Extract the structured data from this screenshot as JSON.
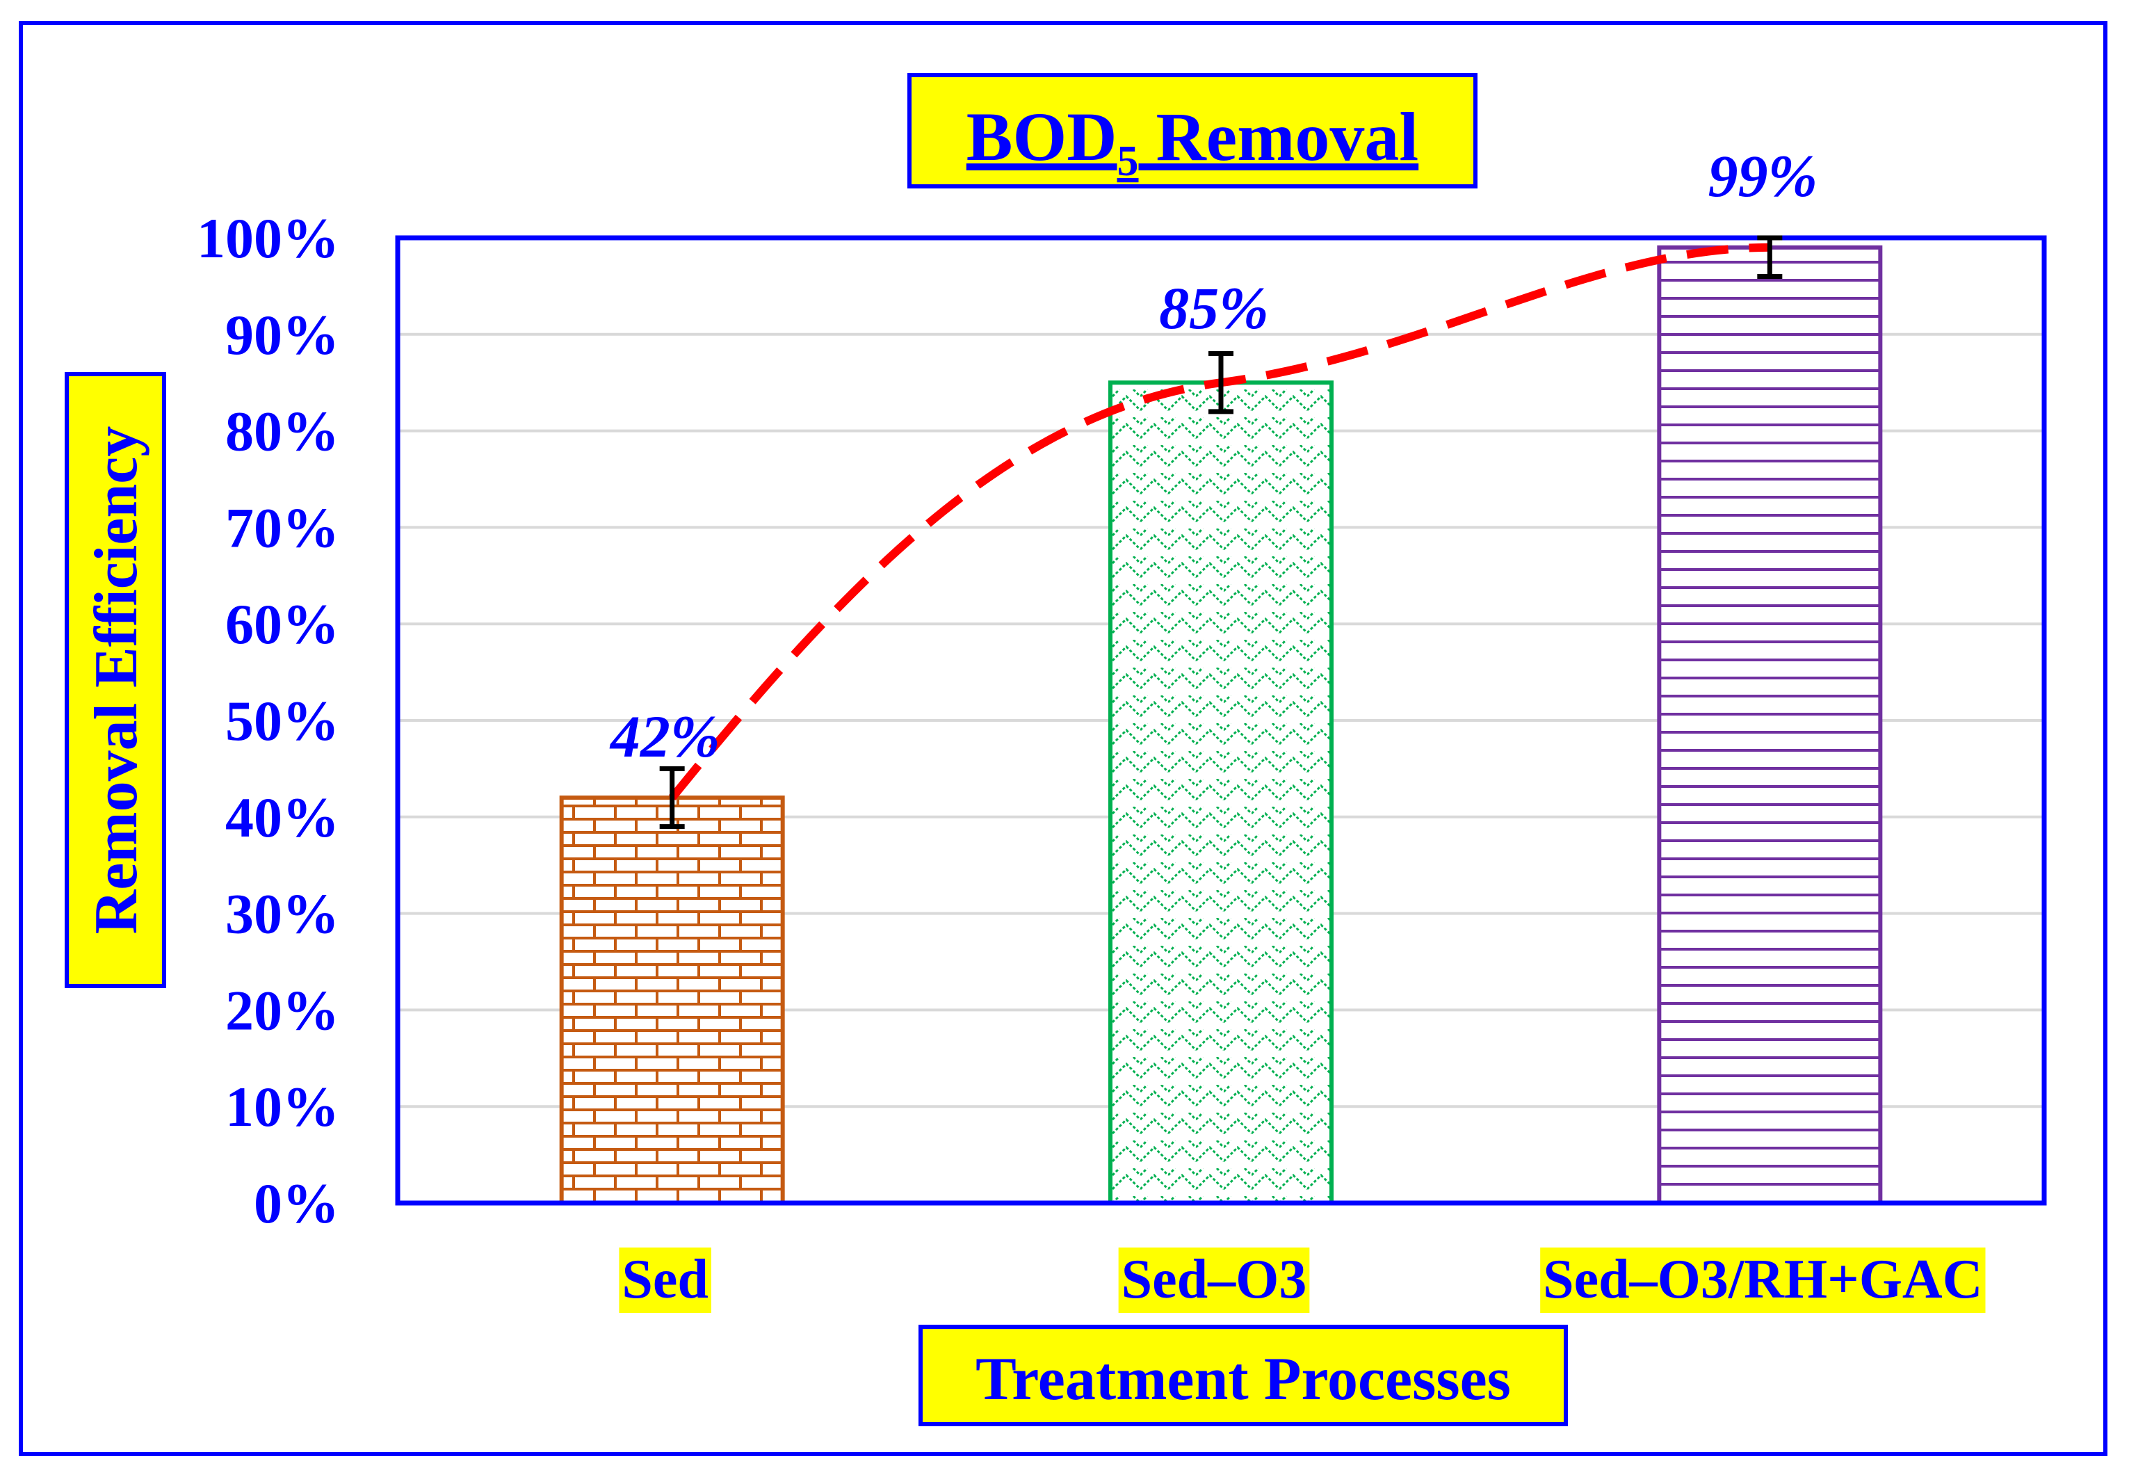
{
  "chart_data": {
    "type": "bar",
    "title_main": "BOD",
    "title_sub": "5",
    "title_rest": " Removal",
    "xlabel": "Treatment Processes",
    "ylabel": "Removal Efficiency",
    "categories": [
      "Sed",
      "Sed–O3",
      "Sed–O3/RH+GAC"
    ],
    "values": [
      42,
      85,
      99
    ],
    "data_labels": [
      "42%",
      "85%",
      "99%"
    ],
    "error": [
      3,
      3,
      3
    ],
    "ylim": [
      0,
      100
    ],
    "yticks": [
      "0%",
      "10%",
      "20%",
      "30%",
      "40%",
      "50%",
      "60%",
      "70%",
      "80%",
      "90%",
      "100%"
    ],
    "grid": true,
    "trendline": {
      "style": "dashed",
      "color": "#ff0000"
    },
    "colors": {
      "text": "#0000ff",
      "label_bg": "#ffff00",
      "frame": "#0000ff",
      "grid": "#d9d9d9",
      "bar_strokes": [
        "#c55a11",
        "#00b050",
        "#7030a0"
      ],
      "error_bar": "#000000"
    }
  }
}
